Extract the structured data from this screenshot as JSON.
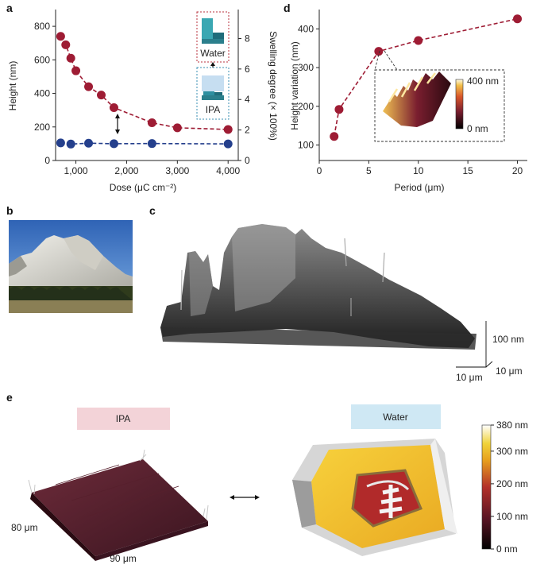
{
  "panels": {
    "a": "a",
    "b": "b",
    "c": "c",
    "d": "d",
    "e": "e"
  },
  "chart_data": [
    {
      "panel": "a",
      "type": "scatter",
      "xlabel": "Dose (μC cm⁻²)",
      "ylabel": "Height (nm)",
      "ylabel_right": "Swelling degree (× 100%)",
      "xlim": [
        600,
        4200
      ],
      "ylim": [
        0,
        900
      ],
      "ylim_right": [
        0,
        9.9
      ],
      "xticks": [
        "1,000",
        "2,000",
        "3,000",
        "4,000"
      ],
      "xtick_values": [
        1000,
        2000,
        3000,
        4000
      ],
      "yticks": [
        "0",
        "200",
        "400",
        "600",
        "800"
      ],
      "ytick_values": [
        0,
        200,
        400,
        600,
        800
      ],
      "yticks_right": [
        "0",
        "2",
        "4",
        "6",
        "8"
      ],
      "ytick_right_values": [
        0,
        2,
        4,
        6,
        8
      ],
      "series": [
        {
          "color": "#9e1c34",
          "line": "dashed",
          "x": [
            700,
            800,
            900,
            1000,
            1250,
            1500,
            1750,
            2500,
            3000,
            4000
          ],
          "y": [
            740,
            690,
            610,
            535,
            440,
            390,
            315,
            225,
            195,
            185
          ]
        },
        {
          "color": "#243f8c",
          "line": "dashed",
          "x": [
            700,
            900,
            1250,
            1750,
            2500,
            4000
          ],
          "y": [
            105,
            98,
            103,
            100,
            101,
            99
          ]
        }
      ],
      "inset_top_label": "Water",
      "inset_bottom_label": "IPA"
    },
    {
      "panel": "d",
      "type": "line",
      "xlabel": "Period (μm)",
      "ylabel": "Height variation (nm)",
      "xlim": [
        0,
        21
      ],
      "ylim": [
        60,
        450
      ],
      "xticks": [
        "0",
        "5",
        "10",
        "15",
        "20"
      ],
      "xtick_values": [
        0,
        5,
        10,
        15,
        20
      ],
      "yticks": [
        "100",
        "200",
        "300",
        "400"
      ],
      "ytick_values": [
        100,
        200,
        300,
        400
      ],
      "series": [
        {
          "color": "#9e1c34",
          "line": "dashed",
          "x": [
            1.5,
            2,
            6,
            10,
            20
          ],
          "y": [
            122,
            192,
            342,
            370,
            426
          ]
        }
      ],
      "inset_colorbar": [
        "400 nm",
        "0 nm"
      ]
    }
  ],
  "panel_c": {
    "scale_z": "100 nm",
    "scale_y": "10 μm",
    "scale_x": "10 μm"
  },
  "panel_e": {
    "left_label": "IPA",
    "right_label": "Water",
    "left_color": "#f3d3d8",
    "right_color": "#cfe8f4",
    "dim_y": "80 μm",
    "dim_x": "90 μm",
    "colorbar_ticks": [
      "380 nm",
      "300 nm",
      "200 nm",
      "100 nm",
      "0 nm"
    ]
  }
}
